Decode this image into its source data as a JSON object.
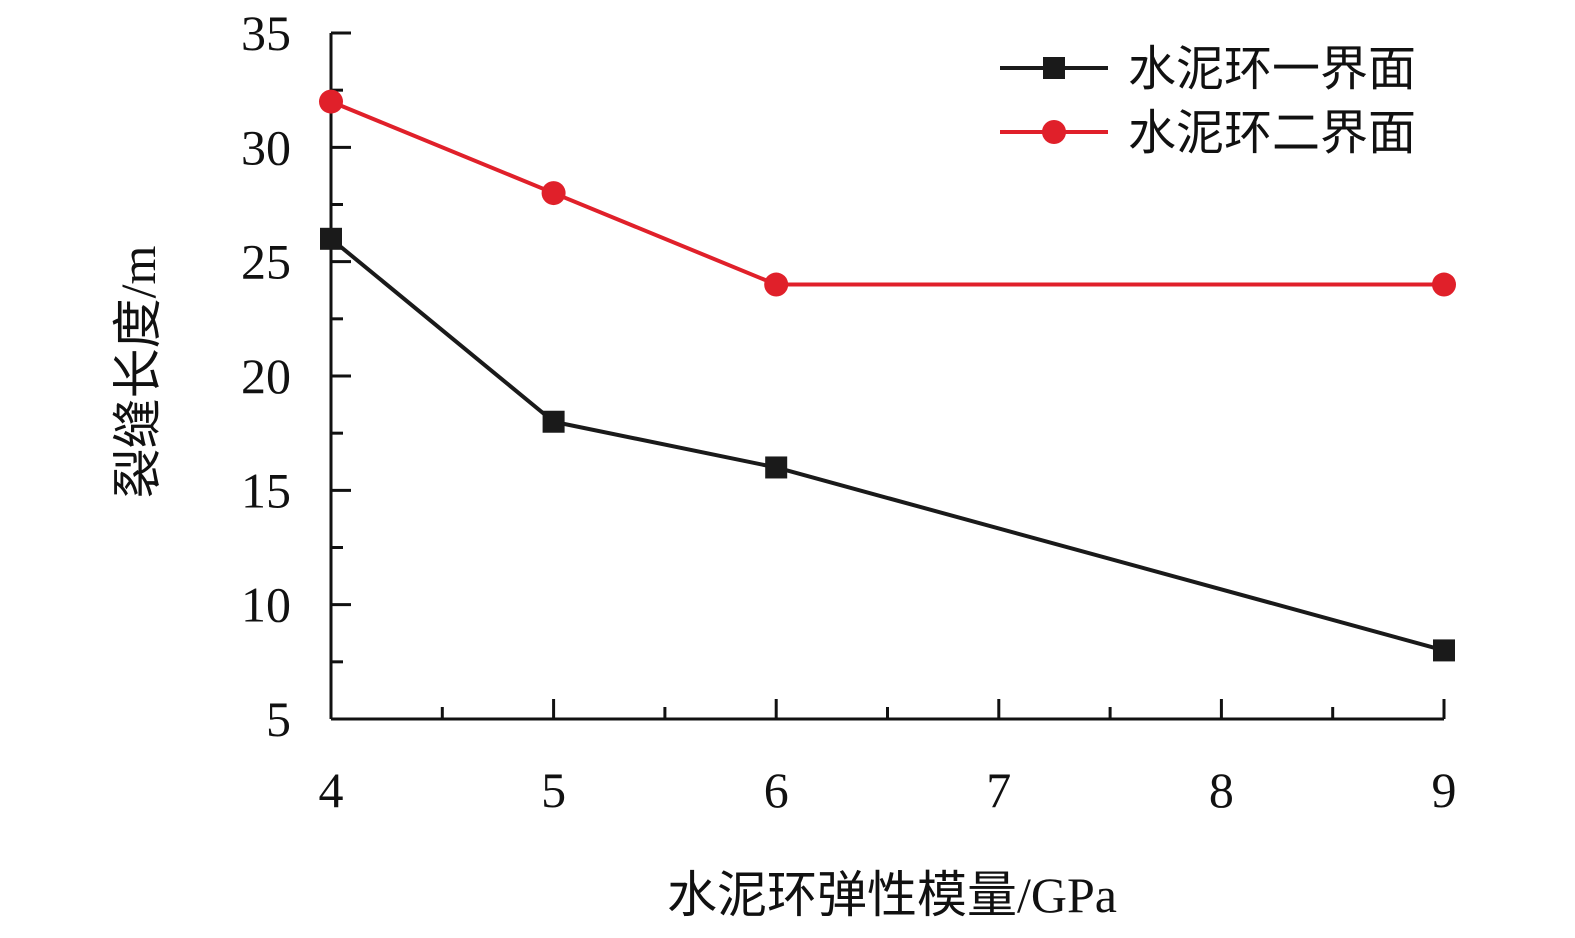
{
  "chart_data": {
    "type": "line",
    "xlabel": "水泥环弹性模量/GPa",
    "ylabel": "裂缝长度/m",
    "xlim": [
      4,
      9
    ],
    "ylim": [
      5,
      35
    ],
    "x_ticks": [
      "4",
      "5",
      "6",
      "7",
      "8",
      "9"
    ],
    "y_ticks": [
      "5",
      "10",
      "15",
      "20",
      "25",
      "30",
      "35"
    ],
    "x_minor_ticks": [
      4.5,
      5.5,
      6.5,
      7.5,
      8.5
    ],
    "y_minor_ticks": [
      7.5,
      12.5,
      17.5,
      22.5,
      27.5,
      32.5
    ],
    "grid": false,
    "legend_position": "top-right",
    "series": [
      {
        "name": "水泥环一界面",
        "marker": "square",
        "color": "#1a1a1a",
        "x": [
          4,
          5,
          6,
          9
        ],
        "values": [
          26,
          18,
          16,
          8
        ]
      },
      {
        "name": "水泥环二界面",
        "marker": "circle",
        "color": "#e0202a",
        "x": [
          4,
          5,
          6,
          9
        ],
        "values": [
          32,
          28,
          24,
          24
        ]
      }
    ]
  }
}
